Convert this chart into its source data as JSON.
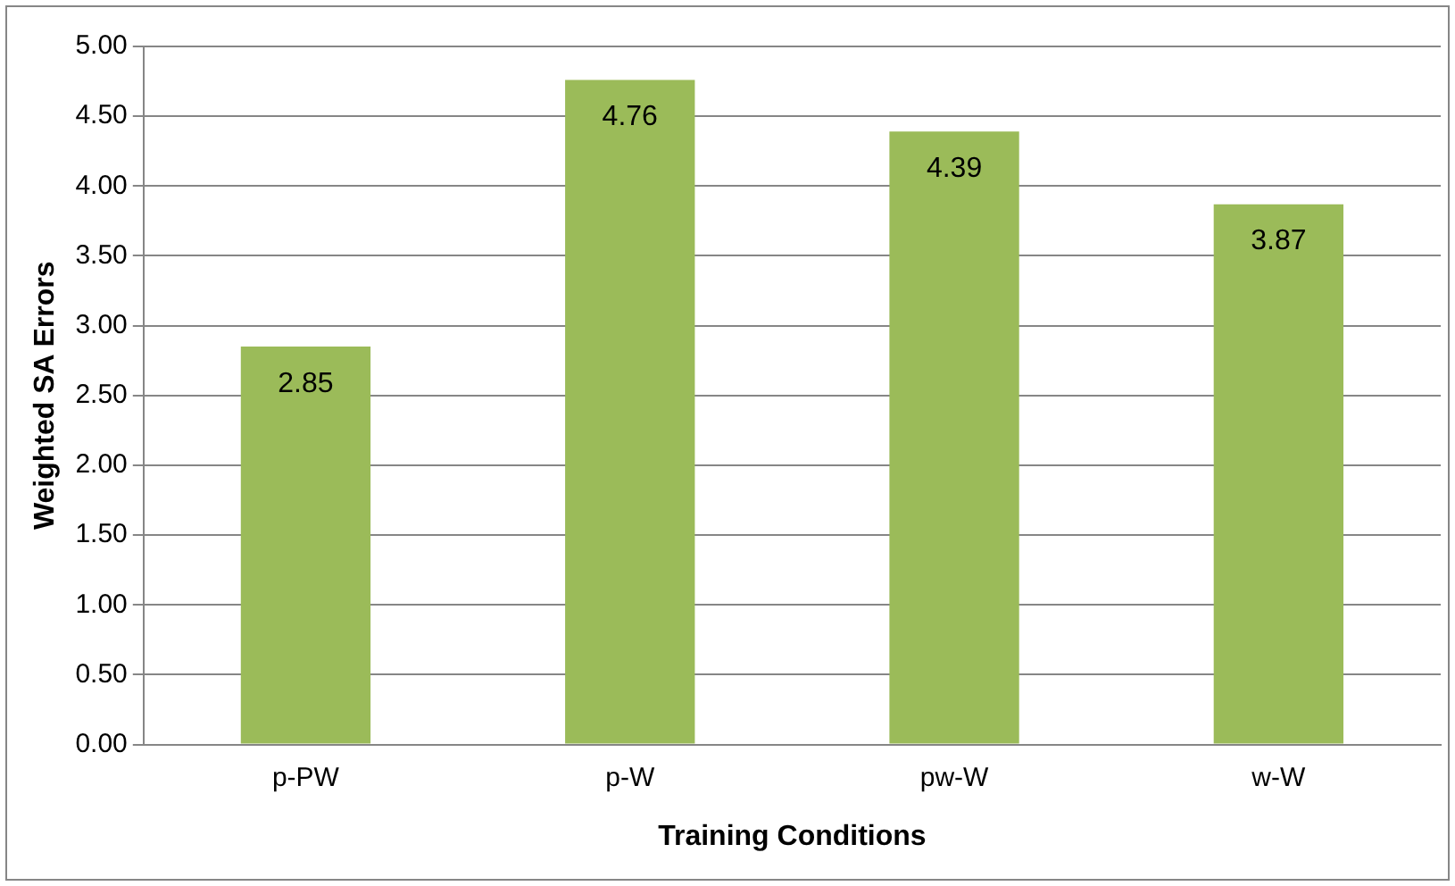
{
  "chart_data": {
    "type": "bar",
    "xlabel": "Training Conditions",
    "ylabel": "Weighted SA Errors",
    "categories": [
      "p-PW",
      "p-W",
      "pw-W",
      "w-W"
    ],
    "values": [
      2.85,
      4.76,
      4.39,
      3.87
    ],
    "color": "#9bbb59",
    "ylim": [
      0,
      5
    ],
    "yticks": [
      {
        "value": 0,
        "label": "0.00"
      },
      {
        "value": 0.5,
        "label": "0.50"
      },
      {
        "value": 1,
        "label": "1.00"
      },
      {
        "value": 1.5,
        "label": "1.50"
      },
      {
        "value": 2,
        "label": "2.00"
      },
      {
        "value": 2.5,
        "label": "2.50"
      },
      {
        "value": 3,
        "label": "3.00"
      },
      {
        "value": 3.5,
        "label": "3.50"
      },
      {
        "value": 4,
        "label": "4.00"
      },
      {
        "value": 4.5,
        "label": "4.50"
      },
      {
        "value": 5,
        "label": "5.00"
      }
    ],
    "grid": "y",
    "data_labels": true,
    "legend": false
  }
}
